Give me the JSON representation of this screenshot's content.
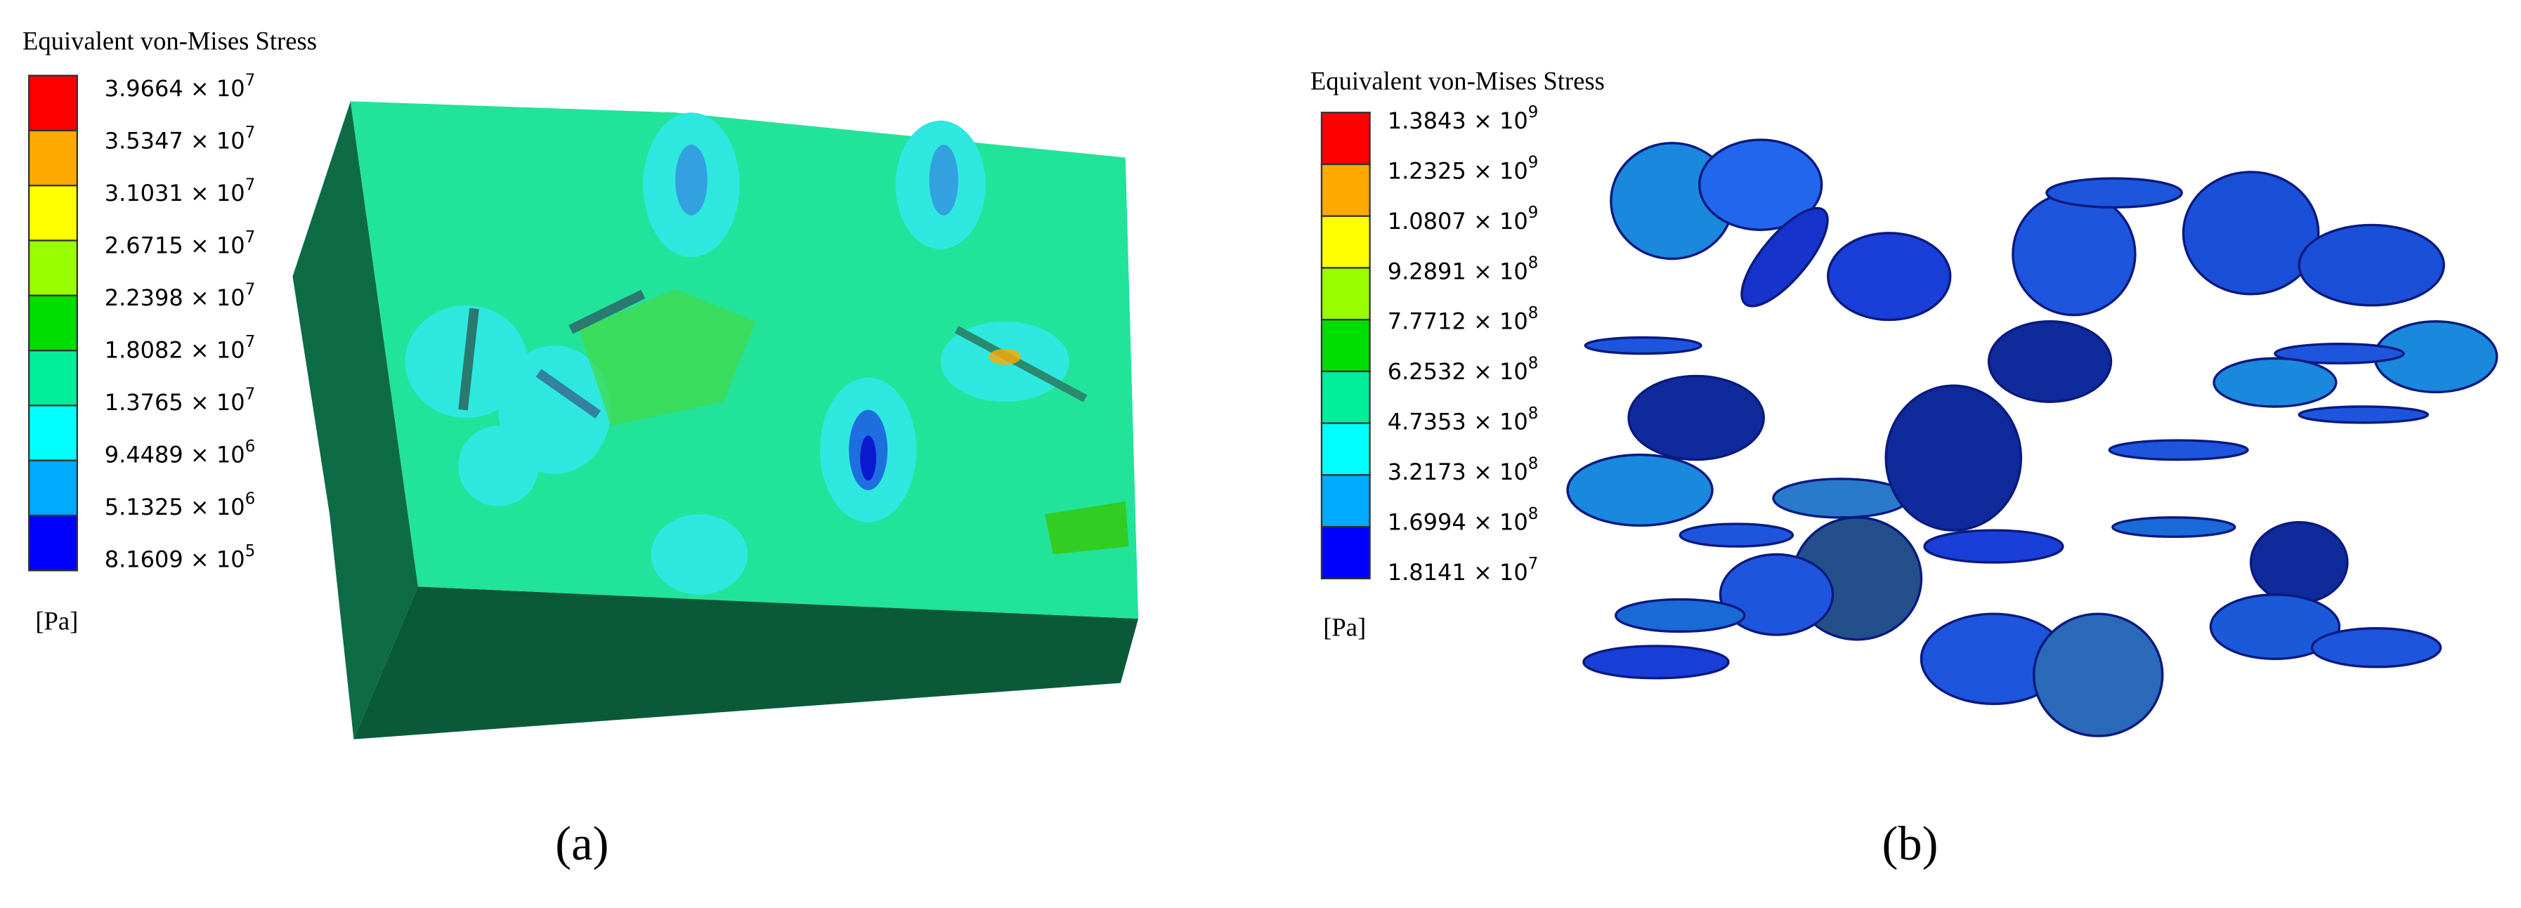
{
  "panel_a": {
    "legend": {
      "title": "Equivalent von-Mises Stress",
      "unit": "[Pa]",
      "colors": [
        "#ff0000",
        "#ffaa00",
        "#ffff00",
        "#99ff00",
        "#00dd00",
        "#00ee99",
        "#00ffff",
        "#00aaff",
        "#0000ff"
      ],
      "labels": [
        {
          "mantissa": "3.9664 × 10",
          "exponent": "7"
        },
        {
          "mantissa": "3.5347 × 10",
          "exponent": "7"
        },
        {
          "mantissa": "3.1031 × 10",
          "exponent": "7"
        },
        {
          "mantissa": "2.6715 × 10",
          "exponent": "7"
        },
        {
          "mantissa": "2.2398 × 10",
          "exponent": "7"
        },
        {
          "mantissa": "1.8082 × 10",
          "exponent": "7"
        },
        {
          "mantissa": "1.3765 × 10",
          "exponent": "7"
        },
        {
          "mantissa": "9.4489 × 10",
          "exponent": "6"
        },
        {
          "mantissa": "5.1325 × 10",
          "exponent": "6"
        },
        {
          "mantissa": "8.1609 × 10",
          "exponent": "5"
        }
      ]
    },
    "caption": "(a)"
  },
  "panel_b": {
    "legend": {
      "title": "Equivalent von-Mises Stress",
      "unit": "[Pa]",
      "colors": [
        "#ff0000",
        "#ffaa00",
        "#ffff00",
        "#99ff00",
        "#00dd00",
        "#00ee99",
        "#00ffff",
        "#00aaff",
        "#0000ff"
      ],
      "labels": [
        {
          "mantissa": "1.3843 × 10",
          "exponent": "9"
        },
        {
          "mantissa": "1.2325 × 10",
          "exponent": "9"
        },
        {
          "mantissa": "1.0807 × 10",
          "exponent": "9"
        },
        {
          "mantissa": "9.2891 × 10",
          "exponent": "8"
        },
        {
          "mantissa": "7.7712 × 10",
          "exponent": "8"
        },
        {
          "mantissa": "6.2532 × 10",
          "exponent": "8"
        },
        {
          "mantissa": "4.7353 × 10",
          "exponent": "8"
        },
        {
          "mantissa": "3.2173 × 10",
          "exponent": "8"
        },
        {
          "mantissa": "1.6994 × 10",
          "exponent": "8"
        },
        {
          "mantissa": "1.8141 × 10",
          "exponent": "7"
        }
      ]
    },
    "caption": "(b)"
  }
}
